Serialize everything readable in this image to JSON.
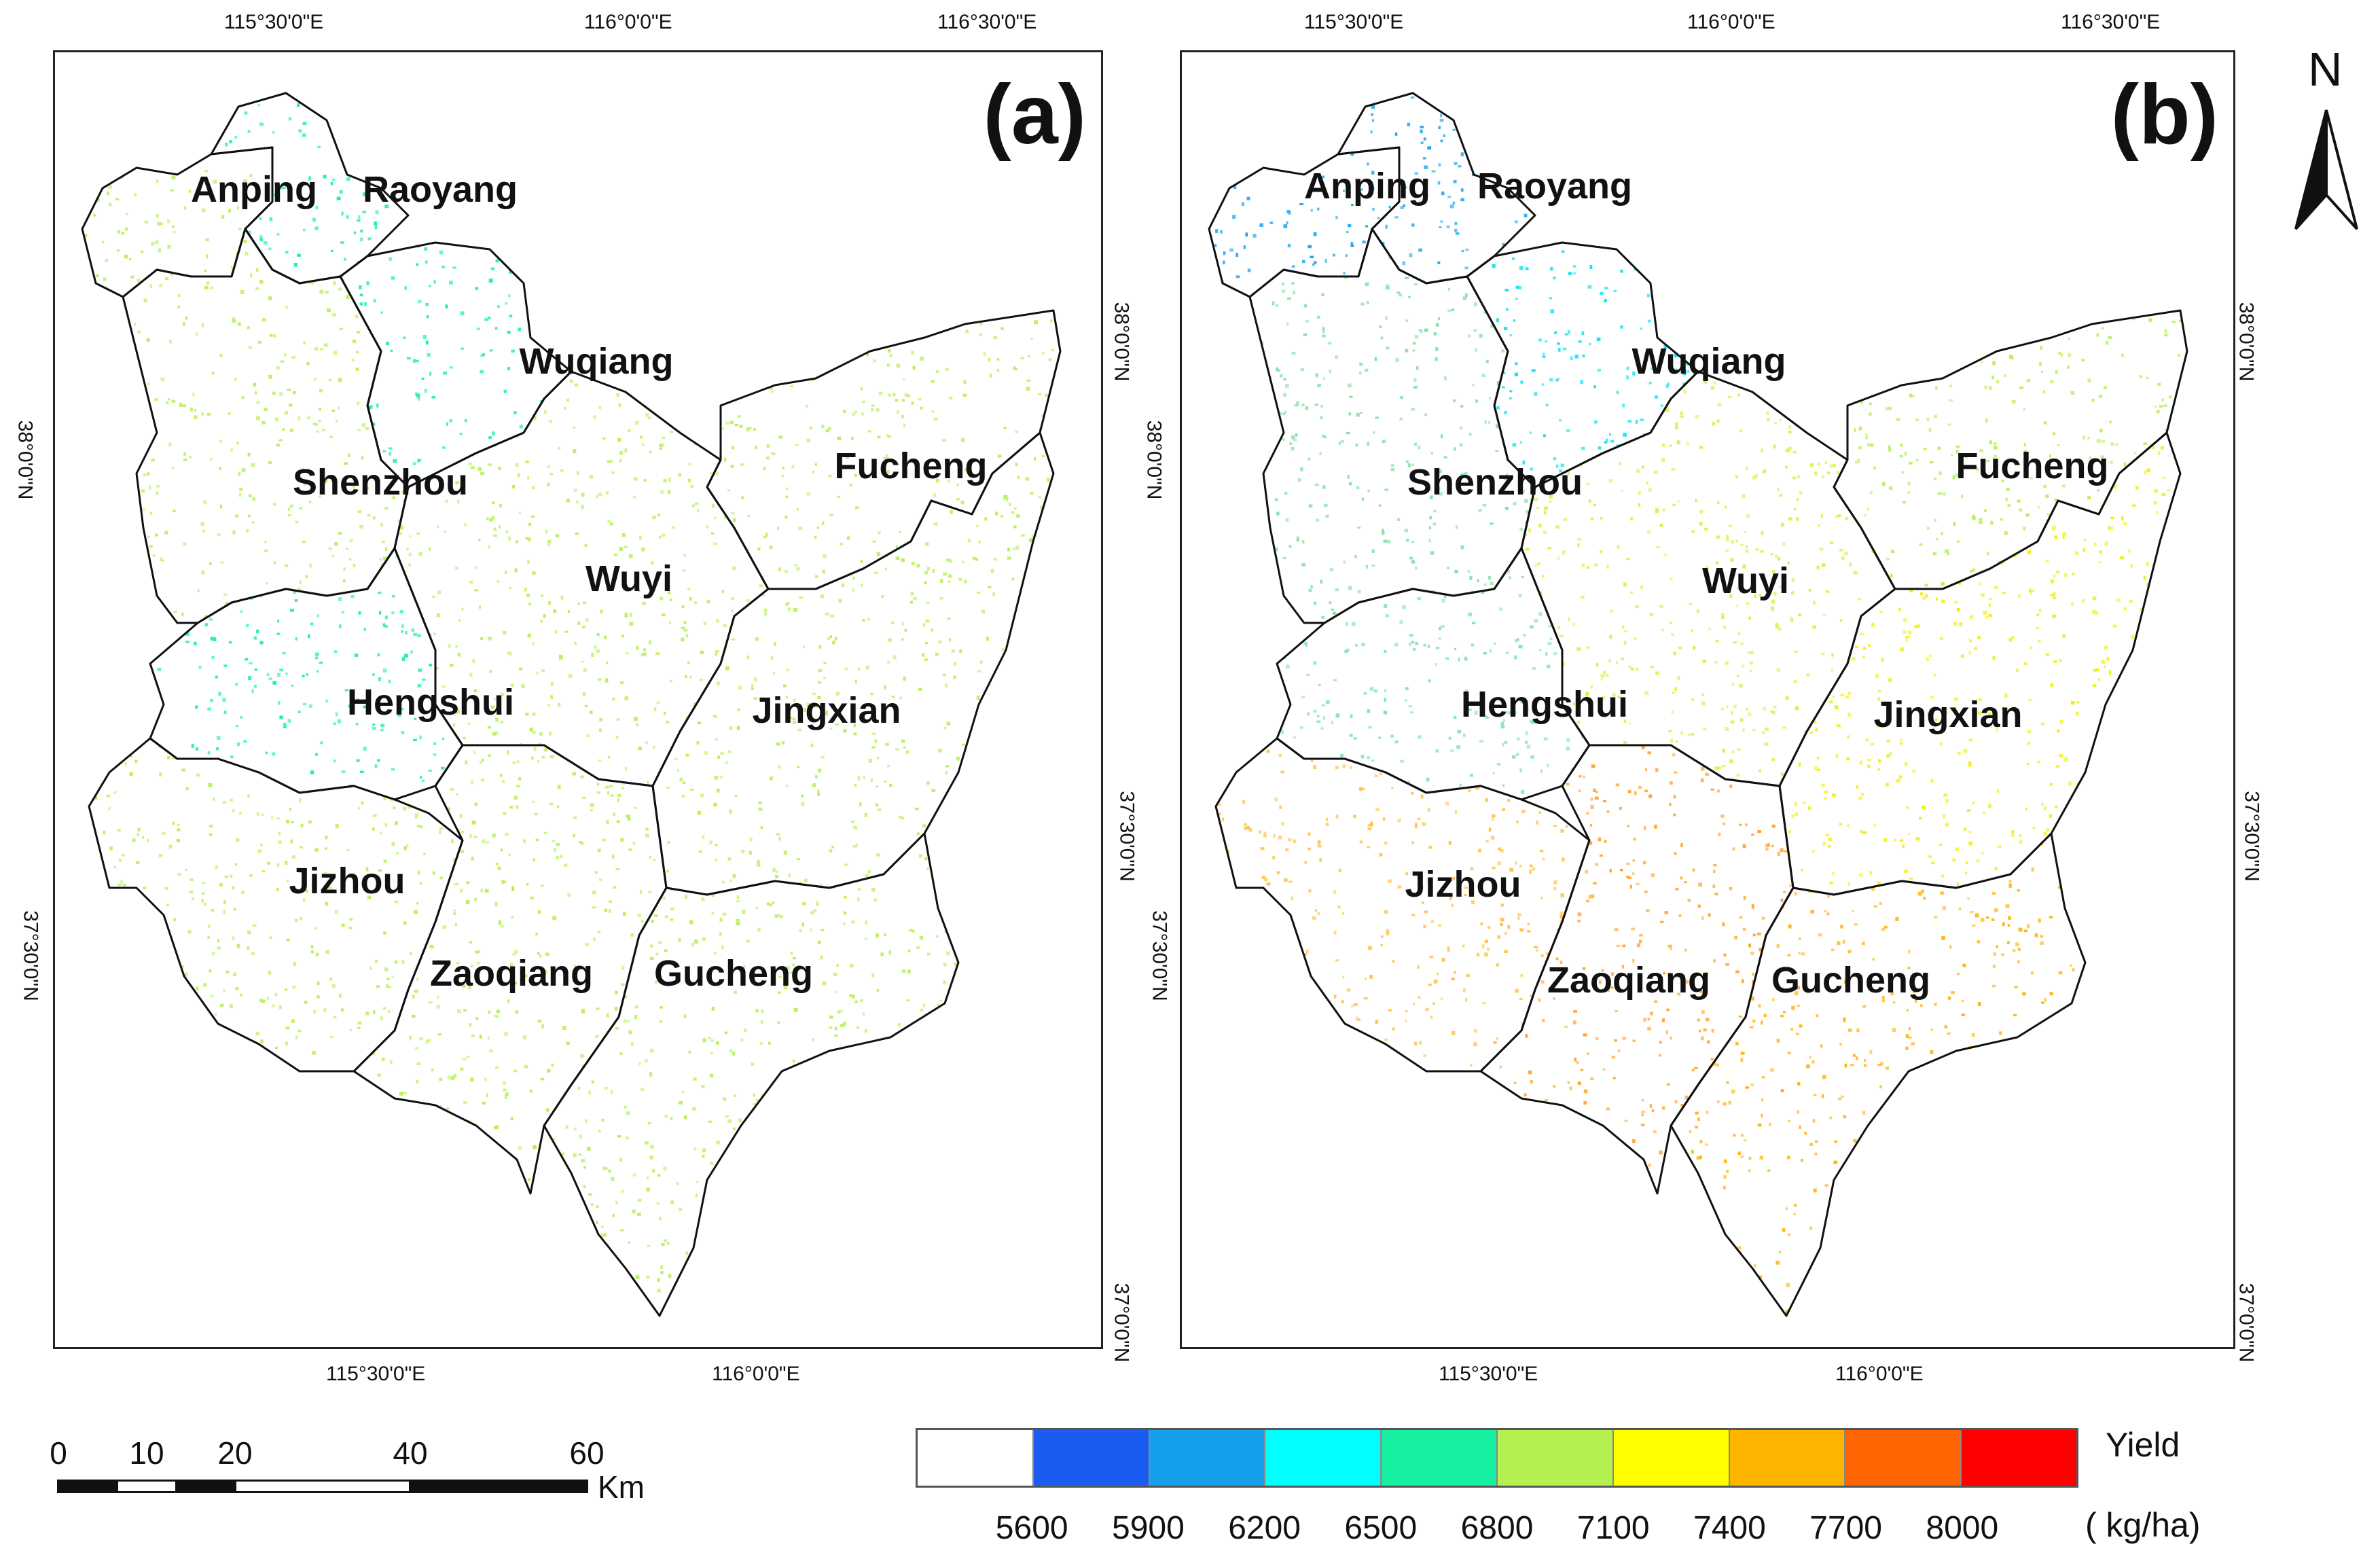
{
  "panels": [
    {
      "id": "a",
      "label": "(a)",
      "counties": [
        "Anping",
        "Raoyang",
        "Wuqiang",
        "Shenzhou",
        "Fucheng",
        "Wuyi",
        "Hengshui",
        "Jingxian",
        "Jizhou",
        "Zaoqiang",
        "Gucheng"
      ],
      "top_lon_labels": [
        "115°30'0\"E",
        "116°0'0\"E",
        "116°30'0\"E"
      ],
      "bottom_lon_labels": [
        "115°30'0\"E",
        "116°0'0\"E"
      ],
      "left_lat_labels": [
        "38°0'0\"N",
        "37°30'0\"N"
      ],
      "right_lat_labels": [
        "38°0'0\"N",
        "37°30'0\"N",
        "37°0'0\"N"
      ]
    },
    {
      "id": "b",
      "label": "(b)",
      "counties": [
        "Anping",
        "Raoyang",
        "Wuqiang",
        "Shenzhou",
        "Fucheng",
        "Wuyi",
        "Hengshui",
        "Jingxian",
        "Jizhou",
        "Zaoqiang",
        "Gucheng"
      ],
      "top_lon_labels": [
        "115°30'0\"E",
        "116°0'0\"E",
        "116°30'0\"E"
      ],
      "bottom_lon_labels": [
        "115°30'0\"E",
        "116°0'0\"E"
      ],
      "left_lat_labels": [
        "38°0'0\"N",
        "37°30'0\"N"
      ],
      "right_lat_labels": [
        "38°0'0\"N",
        "37°30'0\"N",
        "37°0'0\"N"
      ]
    }
  ],
  "north_arrow": {
    "label": "N"
  },
  "scale_bar": {
    "ticks": [
      "0",
      "10",
      "20",
      "40",
      "60"
    ],
    "unit": "Km"
  },
  "legend": {
    "title": "Yield",
    "unit": "( kg/ha)",
    "colors": [
      "#ffffff",
      "#1a5cf2",
      "#14a0ea",
      "#00ffff",
      "#14f0a0",
      "#b4f050",
      "#ffff00",
      "#ffb400",
      "#ff6400",
      "#ff0000"
    ],
    "tick_values": [
      "5600",
      "5900",
      "6200",
      "6500",
      "6800",
      "7100",
      "7400",
      "7700",
      "8000"
    ]
  },
  "county_tones": {
    "a": {
      "Anping": "#b4f050",
      "Raoyang": "#14f0a0",
      "Wuqiang": "#14f0a0",
      "Shenzhou": "#b4f050",
      "Fucheng": "#b4f050",
      "Wuyi": "#b4f050",
      "Hengshui": "#14f0a0",
      "Jingxian": "#b4f050",
      "Jizhou": "#b4f050",
      "Zaoqiang": "#b4f050",
      "Gucheng": "#b4f050"
    },
    "b": {
      "Anping": "#14a0ea",
      "Raoyang": "#14a0ea",
      "Wuqiang": "#00e0f0",
      "Shenzhou": "#80e0a0",
      "Fucheng": "#b4f050",
      "Wuyi": "#d8f040",
      "Hengshui": "#80e0c0",
      "Jingxian": "#f0f000",
      "Jizhou": "#ffc040",
      "Zaoqiang": "#ffa020",
      "Gucheng": "#ffb000"
    }
  }
}
